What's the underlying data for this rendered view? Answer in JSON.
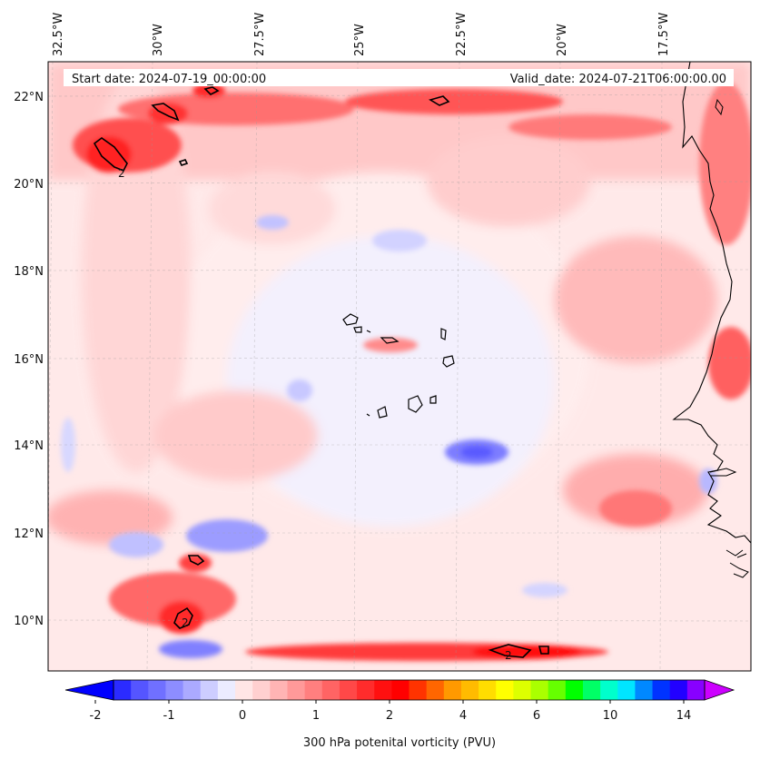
{
  "header": {
    "start_date": "Start date: 2024-07-19_00:00:00",
    "valid_date": "Valid_date: 2024-07-21T06:00:00.00"
  },
  "map": {
    "lon_labels": [
      "32.5°W",
      "30°W",
      "27.5°W",
      "25°W",
      "22.5°W",
      "20°W",
      "17.5°W"
    ],
    "lat_labels": [
      "22°N",
      "20°N",
      "18°N",
      "16°N",
      "14°N",
      "12°N",
      "10°N"
    ],
    "contour_labels": [
      "2",
      "2",
      "2"
    ],
    "extent": {
      "lon_min": -33.0,
      "lon_max": -15.5,
      "lat_min": 8.9,
      "lat_max": 22.8
    }
  },
  "colorbar": {
    "ticks": [
      "-2",
      "-1",
      "0",
      "1",
      "2",
      "4",
      "6",
      "10",
      "14"
    ],
    "label": "300 hPa potenital vorticity (PVU)",
    "colors": [
      "#0000ff",
      "#2b2bff",
      "#5555ff",
      "#7070ff",
      "#8d8dff",
      "#abaaff",
      "#cdcdff",
      "#ececff",
      "#ffe6e6",
      "#ffd0d0",
      "#ffb4b4",
      "#ff9999",
      "#ff7f7f",
      "#ff6464",
      "#ff4848",
      "#ff2c2c",
      "#ff1010",
      "#ff0000",
      "#ff3300",
      "#ff6600",
      "#ff9900",
      "#ffbb00",
      "#ffdd00",
      "#ffff00",
      "#ddff00",
      "#aaff00",
      "#66ff00",
      "#00ff00",
      "#00ff66",
      "#00ffcc",
      "#00e5ff",
      "#0088ff",
      "#0033ff",
      "#2200ff",
      "#8800ff",
      "#cc00ff"
    ]
  }
}
